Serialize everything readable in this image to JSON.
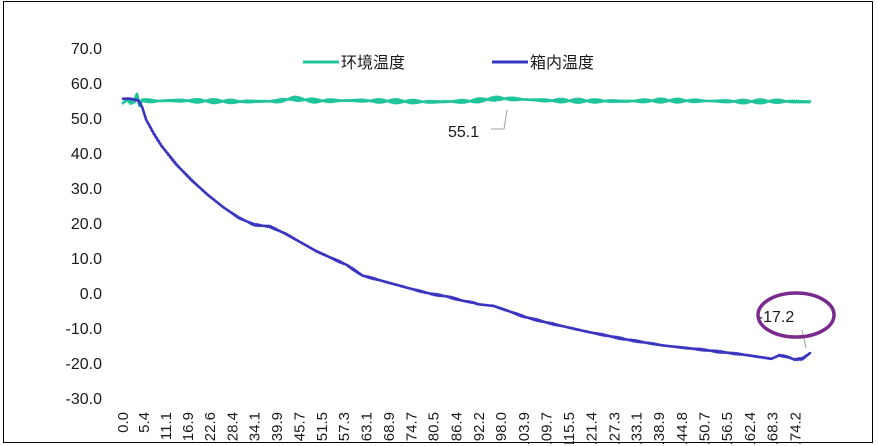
{
  "chart_data": {
    "type": "line",
    "y_ticks": [
      "70.0",
      "60.0",
      "50.0",
      "40.0",
      "30.0",
      "20.0",
      "10.0",
      "0.0",
      "-10.0",
      "-20.0",
      "-30.0"
    ],
    "ylim": [
      -30,
      70
    ],
    "x_ticks": [
      "0.0",
      "5.4",
      "11.1",
      "16.9",
      "22.6",
      "28.4",
      "34.1",
      "39.9",
      "45.7",
      "51.5",
      "57.3",
      "63.1",
      "68.9",
      "74.7",
      "80.5",
      "86.4",
      "92.2",
      "98.0",
      "103.9",
      "109.7",
      "115.5",
      "121.4",
      "127.3",
      "133.1",
      "138.9",
      "144.8",
      "150.7",
      "156.5",
      "162.4",
      "168.3",
      "174.2"
    ],
    "xlim": [
      0,
      178
    ],
    "legend_position": "top",
    "series": [
      {
        "name": "环境温度",
        "color": "#1fc49a",
        "x": [
          0,
          1,
          2,
          3,
          3.6,
          4.2,
          5,
          6,
          8,
          12,
          20,
          30,
          40,
          44,
          50,
          60,
          70,
          80,
          90,
          97,
          100,
          110,
          120,
          130,
          140,
          150,
          160,
          170,
          178
        ],
        "y": [
          54.2,
          55.4,
          54.6,
          55.0,
          56.8,
          54.0,
          55.1,
          55.0,
          54.8,
          55.0,
          54.9,
          54.7,
          54.8,
          55.6,
          54.9,
          55.0,
          54.8,
          54.6,
          54.8,
          55.6,
          55.5,
          55.0,
          54.9,
          54.8,
          55.0,
          54.9,
          54.7,
          54.8,
          54.6
        ]
      },
      {
        "name": "箱内温度",
        "color": "#3a35c0",
        "x": [
          0,
          2,
          4,
          5,
          6,
          8,
          10,
          14,
          18,
          22,
          26,
          30,
          34,
          38,
          42,
          46,
          50,
          54,
          58,
          62,
          66,
          68,
          72,
          76,
          80,
          84,
          88,
          91,
          92,
          96,
          100,
          104,
          110,
          120,
          130,
          140,
          150,
          160,
          165,
          168,
          170,
          172,
          174,
          176,
          178
        ],
        "y": [
          55.5,
          55.5,
          55.0,
          53.0,
          49.5,
          45.5,
          42.0,
          36.5,
          32.0,
          28.0,
          24.5,
          21.5,
          19.5,
          19.0,
          17.0,
          14.5,
          12.0,
          10.0,
          8.0,
          5.0,
          3.8,
          3.2,
          2.0,
          0.8,
          -0.3,
          -1.0,
          -2.2,
          -2.8,
          -3.2,
          -3.7,
          -5.2,
          -6.8,
          -8.5,
          -11.0,
          -13.2,
          -15.0,
          -16.2,
          -17.5,
          -18.3,
          -18.8,
          -17.8,
          -18.2,
          -19.0,
          -18.8,
          -17.2
        ]
      }
    ],
    "annotations": [
      {
        "text": "55.1",
        "series": "环境温度"
      },
      {
        "text": "-17.2",
        "series": "箱内温度",
        "highlight_color": "#7a2a8c"
      }
    ]
  }
}
